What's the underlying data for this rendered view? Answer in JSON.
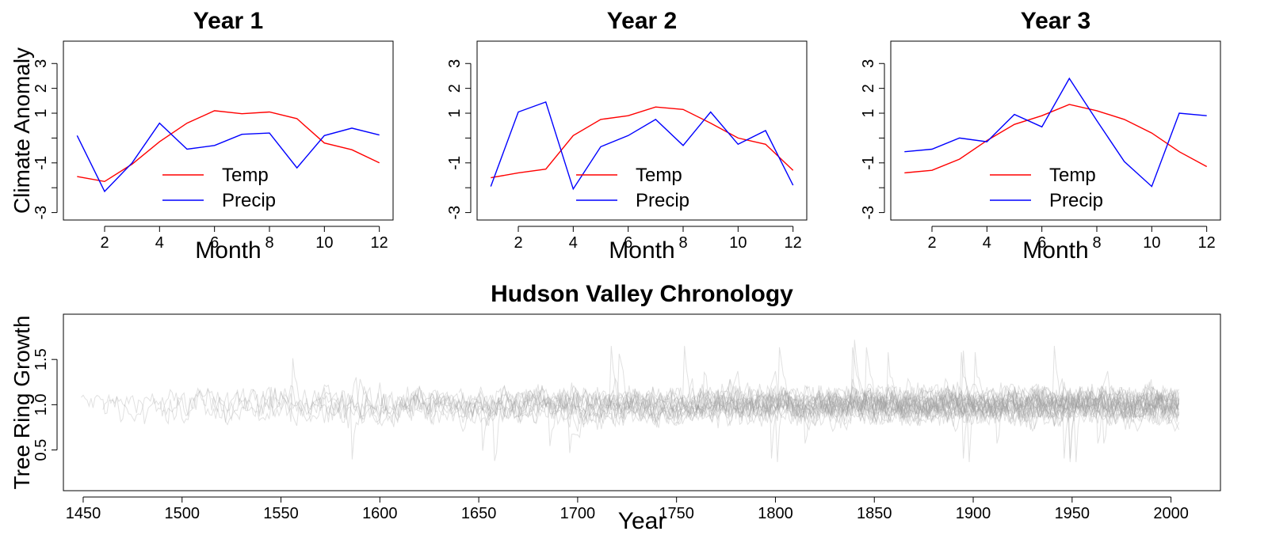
{
  "chart_data": [
    {
      "type": "line",
      "title": "Year 1",
      "xlabel": "Month",
      "ylabel": "Climate Anomaly",
      "xlim": [
        0.5,
        12.5
      ],
      "ylim": [
        -3.3,
        3.9
      ],
      "xticks": [
        2,
        4,
        6,
        8,
        10,
        12
      ],
      "yticks": [
        -3,
        -2,
        -1,
        0,
        1,
        2,
        3
      ],
      "ytick_labels": [
        "-3",
        "",
        "-1",
        "",
        "1",
        "2",
        "3"
      ],
      "legend_position": "bottom-center",
      "x": [
        1,
        2,
        3,
        4,
        5,
        6,
        7,
        8,
        9,
        10,
        11,
        12
      ],
      "series": [
        {
          "name": "Temp",
          "color": "#ff0000",
          "values": [
            -1.55,
            -1.75,
            -1.05,
            -0.15,
            0.6,
            1.1,
            0.98,
            1.05,
            0.78,
            -0.2,
            -0.47,
            -1.0
          ]
        },
        {
          "name": "Precip",
          "color": "#0000ff",
          "values": [
            0.1,
            -2.15,
            -1.0,
            0.6,
            -0.45,
            -0.3,
            0.15,
            0.2,
            -1.2,
            0.1,
            0.4,
            0.12
          ]
        }
      ]
    },
    {
      "type": "line",
      "title": "Year 2",
      "xlabel": "Month",
      "ylabel": "",
      "xlim": [
        0.5,
        12.5
      ],
      "ylim": [
        -3.3,
        3.9
      ],
      "xticks": [
        2,
        4,
        6,
        8,
        10,
        12
      ],
      "yticks": [
        -3,
        -2,
        -1,
        0,
        1,
        2,
        3
      ],
      "ytick_labels": [
        "-3",
        "",
        "-1",
        "",
        "1",
        "2",
        "3"
      ],
      "legend_position": "bottom-center",
      "x": [
        1,
        2,
        3,
        4,
        5,
        6,
        7,
        8,
        9,
        10,
        11,
        12
      ],
      "series": [
        {
          "name": "Temp",
          "color": "#ff0000",
          "values": [
            -1.6,
            -1.4,
            -1.25,
            0.1,
            0.75,
            0.9,
            1.25,
            1.15,
            0.6,
            0.0,
            -0.25,
            -1.3
          ]
        },
        {
          "name": "Precip",
          "color": "#0000ff",
          "values": [
            -1.95,
            1.05,
            1.45,
            -2.05,
            -0.35,
            0.1,
            0.75,
            -0.3,
            1.05,
            -0.25,
            0.3,
            -1.9
          ]
        }
      ]
    },
    {
      "type": "line",
      "title": "Year 3",
      "xlabel": "Month",
      "ylabel": "",
      "xlim": [
        0.5,
        12.5
      ],
      "ylim": [
        -3.3,
        3.9
      ],
      "xticks": [
        2,
        4,
        6,
        8,
        10,
        12
      ],
      "yticks": [
        -3,
        -2,
        -1,
        0,
        1,
        2,
        3
      ],
      "ytick_labels": [
        "-3",
        "",
        "-1",
        "",
        "1",
        "2",
        "3"
      ],
      "legend_position": "bottom-center",
      "x": [
        1,
        2,
        3,
        4,
        5,
        6,
        7,
        8,
        9,
        10,
        11,
        12
      ],
      "series": [
        {
          "name": "Temp",
          "color": "#ff0000",
          "values": [
            -1.4,
            -1.3,
            -0.85,
            -0.1,
            0.55,
            0.9,
            1.35,
            1.1,
            0.75,
            0.2,
            -0.55,
            -1.15
          ]
        },
        {
          "name": "Precip",
          "color": "#0000ff",
          "values": [
            -0.55,
            -0.45,
            0.0,
            -0.15,
            0.95,
            0.45,
            2.4,
            0.7,
            -0.95,
            -1.95,
            1.0,
            0.9
          ]
        }
      ]
    },
    {
      "type": "line",
      "title": "Hudson Valley Chronology",
      "xlabel": "Year",
      "ylabel": "Tree Ring Growth",
      "xlim": [
        1440,
        2025
      ],
      "ylim": [
        0.05,
        2.0
      ],
      "xticks": [
        1450,
        1500,
        1550,
        1600,
        1650,
        1700,
        1750,
        1800,
        1850,
        1900,
        1950,
        2000
      ],
      "yticks": [
        0.5,
        1.0,
        1.5
      ],
      "ytick_labels": [
        "0.5",
        "1.0",
        "1.5"
      ],
      "line_color": "#9a9a9a",
      "series_note_values": {
        "period_start": 1449,
        "period_end": 2004,
        "mean": 1.0,
        "typical_range": [
          0.4,
          1.6
        ],
        "max": 1.93,
        "min": 0.2
      },
      "series": [
        {
          "start": 1449,
          "end": 2004
        },
        {
          "start": 1460,
          "end": 2004
        },
        {
          "start": 1490,
          "end": 2004
        },
        {
          "start": 1515,
          "end": 2004
        },
        {
          "start": 1540,
          "end": 2004
        },
        {
          "start": 1565,
          "end": 2004
        },
        {
          "start": 1590,
          "end": 2004
        },
        {
          "start": 1610,
          "end": 2004
        },
        {
          "start": 1625,
          "end": 2004
        },
        {
          "start": 1640,
          "end": 2004
        },
        {
          "start": 1655,
          "end": 2004
        },
        {
          "start": 1670,
          "end": 2004
        },
        {
          "start": 1685,
          "end": 2004
        },
        {
          "start": 1700,
          "end": 2004
        },
        {
          "start": 1715,
          "end": 2004
        },
        {
          "start": 1730,
          "end": 2004
        },
        {
          "start": 1745,
          "end": 2004
        },
        {
          "start": 1760,
          "end": 2004
        },
        {
          "start": 1775,
          "end": 2004
        },
        {
          "start": 1790,
          "end": 2004
        },
        {
          "start": 1805,
          "end": 2004
        },
        {
          "start": 1815,
          "end": 2004
        },
        {
          "start": 1825,
          "end": 2004
        },
        {
          "start": 1835,
          "end": 2004
        },
        {
          "start": 1845,
          "end": 2004
        },
        {
          "start": 1860,
          "end": 2004
        }
      ]
    }
  ]
}
